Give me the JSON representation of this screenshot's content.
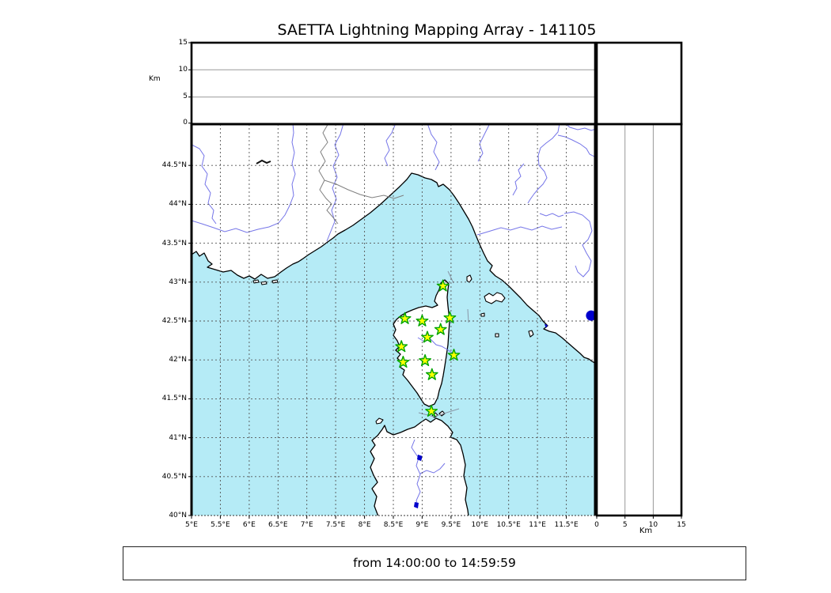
{
  "title": "SAETTA Lightning Mapping Array - 141105",
  "time_range": "from 14:00:00 to 14:59:59",
  "colors": {
    "sea": "#b5ebf6",
    "land": "#ffffff",
    "coast": "#000000",
    "river": "#7575e8",
    "border_line": "#808080",
    "grid": "#555555",
    "panel_grid": "#999999",
    "station_fill": "#fdff00",
    "station_stroke": "#00a500",
    "lake": "#0000cc"
  },
  "top_panel": {
    "km_label": "Km",
    "y_ticks": [
      "15",
      "10",
      "5",
      "0"
    ]
  },
  "right_panel": {
    "km_label": "Km",
    "x_ticks": [
      "0",
      "5",
      "10",
      "15"
    ]
  },
  "map": {
    "lat_ticks": [
      "44.5°N",
      "44°N",
      "43.5°N",
      "43°N",
      "42.5°N",
      "42°N",
      "41.5°N",
      "41°N",
      "40.5°N",
      "40°N"
    ],
    "lon_ticks": [
      "5°E",
      "5.5°E",
      "6°E",
      "6.5°E",
      "7°E",
      "7.5°E",
      "8°E",
      "8.5°E",
      "9°E",
      "9.5°E",
      "10°E",
      "10.5°E",
      "11°E",
      "11.5°E"
    ],
    "extent": {
      "lon_min": 5,
      "lon_max": 12,
      "lat_min": 40,
      "lat_max": 45
    }
  },
  "stations": [
    {
      "lon": 9.36,
      "lat": 42.95
    },
    {
      "lon": 8.7,
      "lat": 42.53
    },
    {
      "lon": 9.0,
      "lat": 42.5
    },
    {
      "lon": 9.48,
      "lat": 42.54
    },
    {
      "lon": 9.32,
      "lat": 42.39
    },
    {
      "lon": 9.09,
      "lat": 42.29
    },
    {
      "lon": 8.64,
      "lat": 42.17
    },
    {
      "lon": 9.55,
      "lat": 42.06
    },
    {
      "lon": 9.05,
      "lat": 41.99
    },
    {
      "lon": 8.67,
      "lat": 41.97
    },
    {
      "lon": 9.17,
      "lat": 41.81
    },
    {
      "lon": 9.16,
      "lat": 41.34
    }
  ],
  "lake_marker": {
    "lon": 11.93,
    "lat": 42.57
  }
}
